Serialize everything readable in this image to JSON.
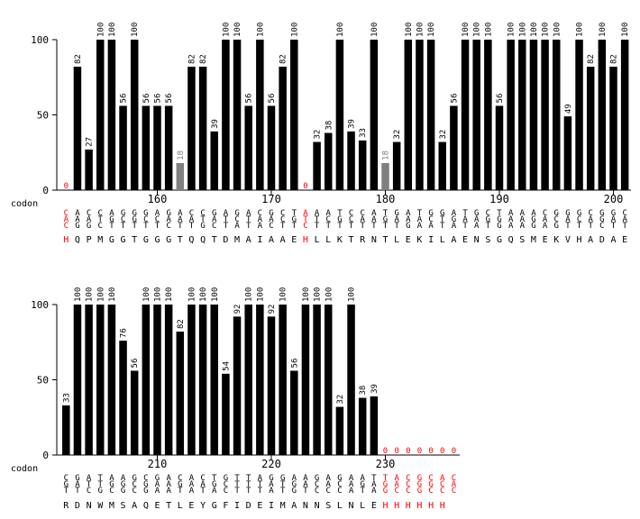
{
  "colors": {
    "bar": "#000000",
    "bar_low": "#808080",
    "zero_label": "#ff0000",
    "tag_residue": "#ff0000",
    "text": "#000000"
  },
  "chart_data": [
    {
      "type": "bar",
      "row_label": "codon",
      "ylim": [
        0,
        100
      ],
      "yticks": [
        0,
        50,
        100
      ],
      "first_codon": 152,
      "xticks": [
        160,
        170,
        180,
        190,
        200
      ],
      "values": [
        0,
        82,
        27,
        100,
        100,
        56,
        100,
        56,
        56,
        56,
        18,
        82,
        82,
        39,
        100,
        100,
        56,
        100,
        56,
        82,
        100,
        0,
        32,
        38,
        100,
        39,
        33,
        100,
        18,
        32,
        100,
        100,
        100,
        32,
        56,
        100,
        100,
        100,
        56,
        100,
        100,
        100,
        100,
        100,
        49,
        100,
        82,
        100,
        82,
        100
      ],
      "seq1": "CACCAGGGAGACCGAGACGCTAAATCCATGATGGATGCTAAACGGGCGGC",
      "seq2": "AAATGCGCCAAATATCTAACGTTCGCAAGAAACTGAAGGAAGACACAGAA",
      "seq3": "CGGCTTTTTCTTGCTATACTTCTTTTTTTTGAATATATGAAGAGTTTCTT",
      "aa": "HQPMGGTGGGTQQTDMAIAAEHLLKTRNTLEKILAENSGQSMEKVHADAE",
      "red_codons": [
        152,
        173
      ]
    },
    {
      "type": "bar",
      "row_label": "codon",
      "ylim": [
        0,
        100
      ],
      "yticks": [
        0,
        50,
        100
      ],
      "first_codon": 202,
      "xticks": [
        210,
        220,
        230
      ],
      "values": [
        33,
        100,
        100,
        100,
        100,
        76,
        56,
        100,
        100,
        100,
        82,
        100,
        100,
        100,
        54,
        92,
        100,
        100,
        92,
        100,
        56,
        100,
        100,
        100,
        32,
        100,
        38,
        39,
        0,
        0,
        0,
        0,
        0,
        0,
        0
      ],
      "seq1": "CGATAAGCGACACTGTTAGGAAGAGAATTACGCACACCT",
      "seq2": "GATTGGCGAAGAAGCTTTATGACACAGAGACGGCAACCGA",
      "seq3": "TTCGCGCGAATATACTTTATGTCCCATAGCCGCCCCCCA",
      "aa": "RDNWMSAQETLEYGFIDEIMANNSLNLEHHHHHH",
      "red_codons": [
        230,
        231,
        232,
        233,
        234,
        235,
        236
      ]
    }
  ]
}
